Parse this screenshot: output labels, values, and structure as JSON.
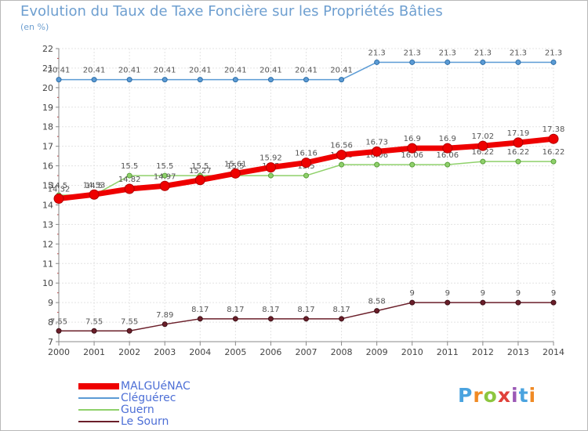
{
  "chart_data": {
    "type": "line",
    "title": "Evolution du Taux de Taxe Foncière sur les Propriétés Bâties",
    "ylabel": "(en %)",
    "xlabel": "",
    "x": [
      "2000",
      "2001",
      "2002",
      "2003",
      "2004",
      "2005",
      "2006",
      "2007",
      "2008",
      "2009",
      "2010",
      "2011",
      "2012",
      "2013",
      "2014"
    ],
    "yticks": [
      "7",
      "8",
      "9",
      "10",
      "11",
      "12",
      "13",
      "14",
      "15",
      "16",
      "17",
      "18",
      "19",
      "20",
      "21",
      "22"
    ],
    "ylim": [
      7,
      22
    ],
    "grid": true,
    "series": [
      {
        "name": "MALGUéNAC",
        "color": "#ee0000",
        "values": [
          14.32,
          14.53,
          14.82,
          14.97,
          15.27,
          15.61,
          15.92,
          16.16,
          16.56,
          16.73,
          16.9,
          16.9,
          17.02,
          17.19,
          17.38
        ],
        "labels": [
          "14.32",
          "14.53",
          "14.82",
          "14.97",
          "15.27",
          "15.61",
          "15.92",
          "16.16",
          "16.56",
          "16.73",
          "16.9",
          "16.9",
          "17.02",
          "17.19",
          "17.38"
        ]
      },
      {
        "name": "Cléguérec",
        "color": "#5b9bd5",
        "values": [
          20.41,
          20.41,
          20.41,
          20.41,
          20.41,
          20.41,
          20.41,
          20.41,
          20.41,
          21.3,
          21.3,
          21.3,
          21.3,
          21.3,
          21.3
        ],
        "labels": [
          "20.41",
          "20.41",
          "20.41",
          "20.41",
          "20.41",
          "20.41",
          "20.41",
          "20.41",
          "20.41",
          "21.3",
          "21.3",
          "21.3",
          "21.3",
          "21.3",
          "21.3"
        ]
      },
      {
        "name": "Guern",
        "color": "#8fd16b",
        "values": [
          14.5,
          14.5,
          15.5,
          15.5,
          15.5,
          15.5,
          15.5,
          15.5,
          16.06,
          16.06,
          16.06,
          16.06,
          16.22,
          16.22,
          16.22
        ],
        "labels": [
          "14.5",
          "14.5",
          "15.5",
          "15.5",
          "15.5",
          "15.5",
          "15.5",
          "15.5",
          "16.06",
          "16.06",
          "16.06",
          "16.06",
          "16.22",
          "16.22",
          "16.22"
        ]
      },
      {
        "name": "Le Sourn",
        "color": "#6b1f2a",
        "values": [
          7.55,
          7.55,
          7.55,
          7.89,
          8.17,
          8.17,
          8.17,
          8.17,
          8.17,
          8.58,
          9,
          9,
          9,
          9,
          9
        ],
        "labels": [
          "7.55",
          "7.55",
          "7.55",
          "7.89",
          "8.17",
          "8.17",
          "8.17",
          "8.17",
          "8.17",
          "8.58",
          "9",
          "9",
          "9",
          "9",
          "9"
        ]
      }
    ]
  },
  "legend": [
    {
      "label": "MALGUéNAC"
    },
    {
      "label": "Cléguérec"
    },
    {
      "label": "Guern"
    },
    {
      "label": "Le Sourn"
    }
  ],
  "logo": {
    "letters": [
      "P",
      "r",
      "o",
      "x",
      "i",
      "t",
      "i"
    ],
    "colors": [
      "#4aa3df",
      "#f08a24",
      "#8dc63f",
      "#e0413a",
      "#9b59b6",
      "#4aa3df",
      "#f08a24"
    ]
  }
}
